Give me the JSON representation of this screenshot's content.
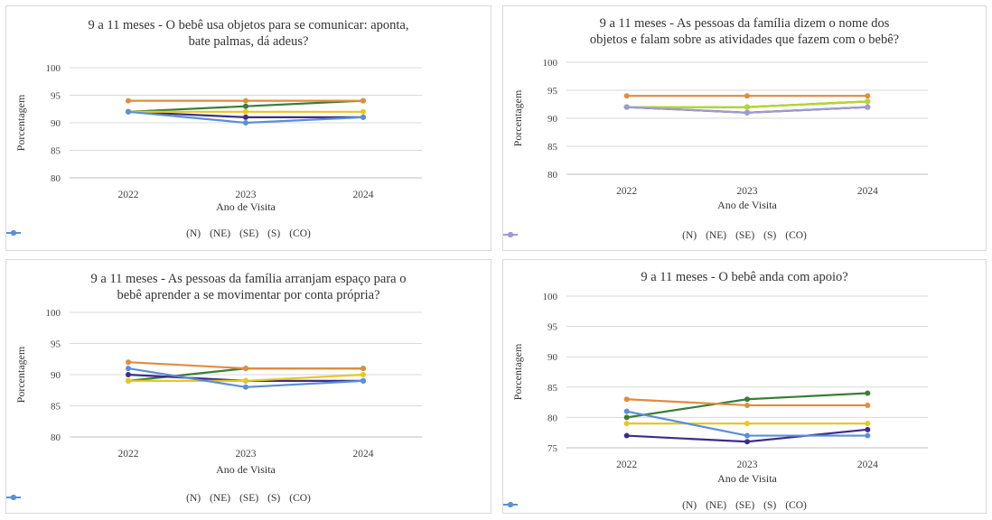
{
  "chart_data": [
    {
      "type": "line",
      "title_lines": [
        "9 a 11 meses - O bebê usa objetos para se comunicar: aponta,",
        "bate palmas, dá adeus?"
      ],
      "xlabel": "Ano de Visita",
      "ylabel": "Porcentagem",
      "categories": [
        "2022",
        "2023",
        "2024"
      ],
      "y_ticks": [
        "80",
        "85",
        "90",
        "95",
        "100"
      ],
      "ylim": [
        80,
        100
      ],
      "grid": true,
      "legend_position": "bottom",
      "series": [
        {
          "name": "(N)",
          "color": "#3a7d35",
          "values": [
            92,
            93,
            94
          ]
        },
        {
          "name": "(NE)",
          "color": "#e08c42",
          "values": [
            94,
            94,
            94
          ]
        },
        {
          "name": "(SE)",
          "color": "#3b2d8a",
          "values": [
            92,
            91,
            91
          ]
        },
        {
          "name": "(S)",
          "color": "#e8c724",
          "values": [
            92,
            92,
            92
          ]
        },
        {
          "name": "(CO)",
          "color": "#5b8fd6",
          "values": [
            92,
            90,
            91
          ]
        }
      ]
    },
    {
      "type": "line",
      "title_lines": [
        "9 a 11 meses - As pessoas da família dizem o nome dos",
        "objetos e falam sobre as atividades que fazem com o bebê?"
      ],
      "xlabel": "Ano de Visita",
      "ylabel": "Porcentagem",
      "categories": [
        "2022",
        "2023",
        "2024"
      ],
      "y_ticks": [
        "80",
        "85",
        "90",
        "95",
        "100"
      ],
      "ylim": [
        80,
        100
      ],
      "grid": true,
      "legend_position": "bottom",
      "series": [
        {
          "name": "(N)",
          "color": "#3a7d35",
          "values": [
            92,
            92,
            93
          ]
        },
        {
          "name": "(NE)",
          "color": "#e08c42",
          "values": [
            94,
            94,
            94
          ]
        },
        {
          "name": "(SE)",
          "color": "#2b2f5e",
          "values": [
            92,
            91,
            92
          ]
        },
        {
          "name": "(S)",
          "color": "#b8d62c",
          "values": [
            92,
            92,
            93
          ]
        },
        {
          "name": "(CO)",
          "color": "#9c9bd6",
          "values": [
            92,
            91,
            92
          ]
        }
      ]
    },
    {
      "type": "line",
      "title_lines": [
        "9 a 11 meses - As pessoas da família arranjam espaço para o",
        "bebê aprender a se movimentar por conta própria?"
      ],
      "xlabel": "Ano de Visita",
      "ylabel": "Porcentagem",
      "categories": [
        "2022",
        "2023",
        "2024"
      ],
      "y_ticks": [
        "80",
        "85",
        "90",
        "95",
        "100"
      ],
      "ylim": [
        80,
        100
      ],
      "grid": true,
      "legend_position": "bottom",
      "series": [
        {
          "name": "(N)",
          "color": "#3a7d35",
          "values": [
            89,
            91,
            91
          ]
        },
        {
          "name": "(NE)",
          "color": "#e08c42",
          "values": [
            92,
            91,
            91
          ]
        },
        {
          "name": "(SE)",
          "color": "#3b2d8a",
          "values": [
            90,
            89,
            89
          ]
        },
        {
          "name": "(S)",
          "color": "#e8c724",
          "values": [
            89,
            89,
            90
          ]
        },
        {
          "name": "(CO)",
          "color": "#5b8fd6",
          "values": [
            91,
            88,
            89
          ]
        }
      ]
    },
    {
      "type": "line",
      "title_lines": [
        "9 a 11 meses - O bebê anda com apoio?"
      ],
      "xlabel": "Ano de Visita",
      "ylabel": "Porcentagem",
      "categories": [
        "2022",
        "2023",
        "2024"
      ],
      "y_ticks": [
        "75",
        "80",
        "85",
        "90",
        "95",
        "100"
      ],
      "ylim": [
        75,
        100
      ],
      "grid": true,
      "legend_position": "bottom",
      "series": [
        {
          "name": "(N)",
          "color": "#3a7d35",
          "values": [
            80,
            83,
            84
          ]
        },
        {
          "name": "(NE)",
          "color": "#e08c42",
          "values": [
            83,
            82,
            82
          ]
        },
        {
          "name": "(SE)",
          "color": "#3b2d8a",
          "values": [
            77,
            76,
            78
          ]
        },
        {
          "name": "(S)",
          "color": "#e8c724",
          "values": [
            79,
            79,
            79
          ]
        },
        {
          "name": "(CO)",
          "color": "#5b8fd6",
          "values": [
            81,
            77,
            77
          ]
        }
      ]
    }
  ]
}
